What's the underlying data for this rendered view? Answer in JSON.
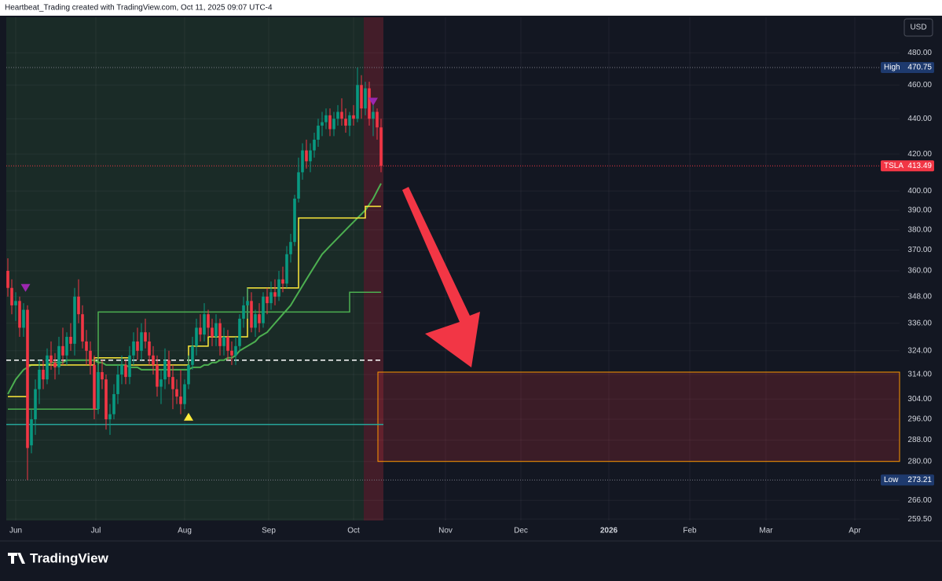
{
  "header": {
    "text": "Heartbeat_Trading created with TradingView.com, Oct 11, 2025 09:07 UTC-4",
    "currency": "USD"
  },
  "footer": {
    "logo": "TradingView"
  },
  "chart_data": {
    "type": "candlestick",
    "log_scale": true,
    "ylim": [
      259,
      503
    ],
    "xlim": [
      -0.4,
      227
    ],
    "up_color": "#089981",
    "down_color": "#f23645",
    "grid": true,
    "yticks": [
      {
        "value": 480,
        "label": "480.00"
      },
      {
        "value": 460,
        "label": "460.00"
      },
      {
        "value": 440,
        "label": "440.00"
      },
      {
        "value": 420,
        "label": "420.00"
      },
      {
        "value": 400,
        "label": "400.00"
      },
      {
        "value": 390,
        "label": "390.00"
      },
      {
        "value": 380,
        "label": "380.00"
      },
      {
        "value": 370,
        "label": "370.00"
      },
      {
        "value": 360,
        "label": "360.00"
      },
      {
        "value": 348,
        "label": "348.00"
      },
      {
        "value": 336,
        "label": "336.00"
      },
      {
        "value": 324,
        "label": "324.00"
      },
      {
        "value": 314,
        "label": "314.00"
      },
      {
        "value": 304,
        "label": "304.00"
      },
      {
        "value": 296,
        "label": "296.00"
      },
      {
        "value": 288,
        "label": "288.00"
      },
      {
        "value": 280,
        "label": "280.00"
      },
      {
        "value": 266,
        "label": "266.00"
      },
      {
        "value": 259.5,
        "label": "259.50"
      }
    ],
    "xticks": [
      {
        "value": 2,
        "label": "Jun"
      },
      {
        "value": 22.4,
        "label": "Jul"
      },
      {
        "value": 45,
        "label": "Aug"
      },
      {
        "value": 66.4,
        "label": "Sep"
      },
      {
        "value": 88,
        "label": "Oct"
      },
      {
        "value": 111.4,
        "label": "Nov"
      },
      {
        "value": 130.6,
        "label": "Dec"
      },
      {
        "value": 153,
        "label": "2026"
      },
      {
        "value": 173.6,
        "label": "Feb"
      },
      {
        "value": 193,
        "label": "Mar"
      },
      {
        "value": 215.6,
        "label": "Apr"
      }
    ],
    "ohlc": [
      [
        360,
        366,
        348,
        352
      ],
      [
        352,
        356,
        340,
        344
      ],
      [
        344,
        350,
        337,
        346
      ],
      [
        346,
        348,
        330,
        334
      ],
      [
        334,
        345,
        330,
        342
      ],
      [
        342,
        344,
        273.21,
        285
      ],
      [
        286,
        300,
        283,
        296
      ],
      [
        296,
        312,
        290,
        308
      ],
      [
        308,
        320,
        302,
        316
      ],
      [
        316,
        320,
        308,
        312
      ],
      [
        312,
        325,
        310,
        322
      ],
      [
        322,
        328,
        316,
        319
      ],
      [
        319,
        323,
        312,
        317
      ],
      [
        317,
        330,
        314,
        326
      ],
      [
        326,
        334,
        318,
        322
      ],
      [
        322,
        332,
        318,
        330
      ],
      [
        330,
        336,
        324,
        327
      ],
      [
        327,
        352,
        322,
        348
      ],
      [
        348,
        356,
        336,
        340
      ],
      [
        340,
        344,
        325,
        328
      ],
      [
        328,
        333,
        318,
        324
      ],
      [
        324,
        328,
        314,
        318
      ],
      [
        318,
        322,
        296,
        300
      ],
      [
        300,
        318,
        298,
        315
      ],
      [
        315,
        320,
        308,
        312
      ],
      [
        312,
        314,
        292,
        296
      ],
      [
        296,
        302,
        290,
        298
      ],
      [
        298,
        310,
        296,
        306
      ],
      [
        306,
        318,
        302,
        314
      ],
      [
        314,
        322,
        310,
        318
      ],
      [
        318,
        320,
        310,
        313
      ],
      [
        313,
        326,
        310,
        322
      ],
      [
        322,
        332,
        318,
        328
      ],
      [
        328,
        334,
        320,
        324
      ],
      [
        324,
        336,
        320,
        332
      ],
      [
        332,
        338,
        325,
        328
      ],
      [
        328,
        332,
        318,
        322
      ],
      [
        322,
        326,
        314,
        318
      ],
      [
        318,
        322,
        305,
        309
      ],
      [
        309,
        316,
        302,
        312
      ],
      [
        312,
        325,
        308,
        320
      ],
      [
        320,
        324,
        310,
        313
      ],
      [
        313,
        318,
        300,
        308
      ],
      [
        308,
        312,
        302,
        305
      ],
      [
        305,
        316,
        298,
        302
      ],
      [
        302,
        312,
        300,
        310
      ],
      [
        310,
        322,
        308,
        318
      ],
      [
        318,
        330,
        316,
        326
      ],
      [
        326,
        338,
        322,
        334
      ],
      [
        334,
        340,
        328,
        331
      ],
      [
        331,
        345,
        328,
        340
      ],
      [
        340,
        342,
        330,
        334
      ],
      [
        334,
        338,
        326,
        330
      ],
      [
        330,
        340,
        326,
        336
      ],
      [
        336,
        338,
        322,
        326
      ],
      [
        326,
        334,
        322,
        330
      ],
      [
        330,
        333,
        320,
        324
      ],
      [
        324,
        328,
        318,
        322
      ],
      [
        322,
        330,
        318,
        326
      ],
      [
        326,
        340,
        324,
        338
      ],
      [
        338,
        348,
        334,
        344
      ],
      [
        344,
        352,
        338,
        346
      ],
      [
        346,
        350,
        332,
        334
      ],
      [
        334,
        342,
        330,
        340
      ],
      [
        340,
        345,
        332,
        336
      ],
      [
        336,
        350,
        334,
        348
      ],
      [
        348,
        352,
        340,
        345
      ],
      [
        345,
        355,
        342,
        350
      ],
      [
        350,
        356,
        344,
        348
      ],
      [
        348,
        360,
        346,
        356
      ],
      [
        356,
        362,
        350,
        354
      ],
      [
        354,
        372,
        352,
        368
      ],
      [
        368,
        378,
        364,
        374
      ],
      [
        374,
        398,
        372,
        396
      ],
      [
        396,
        418,
        394,
        410
      ],
      [
        410,
        426,
        406,
        422
      ],
      [
        422,
        428,
        412,
        416
      ],
      [
        416,
        426,
        410,
        422
      ],
      [
        422,
        432,
        418,
        428
      ],
      [
        428,
        440,
        424,
        436
      ],
      [
        436,
        444,
        430,
        438
      ],
      [
        438,
        446,
        434,
        442
      ],
      [
        442,
        446,
        430,
        434
      ],
      [
        434,
        444,
        430,
        440
      ],
      [
        440,
        448,
        436,
        444
      ],
      [
        444,
        452,
        436,
        440
      ],
      [
        440,
        446,
        432,
        436
      ],
      [
        436,
        444,
        430,
        442
      ],
      [
        442,
        448,
        436,
        440
      ],
      [
        440,
        470.75,
        438,
        460
      ],
      [
        460,
        466,
        440,
        446
      ],
      [
        446,
        462,
        442,
        458
      ],
      [
        458,
        462,
        436,
        440
      ],
      [
        440,
        448,
        430,
        444
      ],
      [
        444,
        446,
        428,
        435
      ],
      [
        435,
        440,
        410,
        413.49
      ]
    ],
    "series": [
      {
        "color": "#4caf50",
        "width": 2,
        "values": [
          306,
          309,
          312,
          314,
          316,
          317,
          318,
          318,
          318,
          318,
          318,
          319,
          319,
          319,
          319,
          320,
          320,
          320,
          320,
          320,
          320,
          320,
          320,
          319,
          319,
          318,
          318,
          318,
          318,
          318,
          318,
          317,
          317,
          317,
          316,
          316,
          316,
          316,
          316,
          316,
          316,
          316,
          316,
          316,
          316,
          316,
          316,
          317,
          317,
          317,
          318,
          318,
          319,
          319,
          320,
          320,
          321,
          321,
          322,
          324,
          325,
          326,
          327,
          328,
          330,
          331,
          332,
          334,
          336,
          338,
          340,
          342,
          344,
          347,
          350,
          353,
          356,
          359,
          362,
          365,
          368,
          370,
          372,
          374,
          376,
          378,
          380,
          382,
          384,
          386,
          388,
          390,
          393,
          396,
          400,
          404
        ]
      },
      {
        "color": "#ffeb3b",
        "width": 1.5,
        "step": true,
        "values": [
          305,
          305,
          305,
          305,
          305,
          318,
          318,
          318,
          318,
          318,
          318,
          318,
          318,
          318,
          318,
          318,
          318,
          318,
          318,
          318,
          318,
          318,
          321,
          321,
          321,
          321,
          321,
          321,
          321,
          321,
          321,
          318,
          318,
          318,
          318,
          318,
          318,
          318,
          318,
          318,
          318,
          318,
          318,
          318,
          318,
          318,
          326,
          326,
          326,
          326,
          326,
          330,
          330,
          330,
          330,
          330,
          330,
          330,
          330,
          330,
          330,
          352,
          352,
          352,
          352,
          352,
          352,
          352,
          352,
          352,
          352,
          352,
          352,
          352,
          386,
          386,
          386,
          386,
          386,
          386,
          386,
          386,
          386,
          386,
          386,
          386,
          386,
          386,
          386,
          386,
          386,
          392,
          392,
          392,
          392,
          392
        ]
      },
      {
        "color": "#4caf50",
        "width": 1.5,
        "step": true,
        "values": [
          300,
          300,
          300,
          300,
          300,
          300,
          300,
          300,
          300,
          300,
          300,
          300,
          300,
          300,
          300,
          300,
          300,
          300,
          300,
          300,
          300,
          300,
          300,
          341,
          341,
          341,
          341,
          341,
          341,
          341,
          341,
          341,
          341,
          341,
          341,
          341,
          341,
          341,
          341,
          341,
          341,
          341,
          341,
          341,
          341,
          341,
          341,
          341,
          341,
          341,
          341,
          341,
          341,
          341,
          341,
          341,
          341,
          341,
          341,
          341,
          341,
          341,
          341,
          341,
          341,
          341,
          341,
          341,
          341,
          341,
          341,
          341,
          341,
          341,
          341,
          341,
          341,
          341,
          341,
          341,
          341,
          341,
          341,
          341,
          341,
          341,
          341,
          350,
          350,
          350,
          350,
          350,
          350,
          350,
          350,
          350
        ]
      }
    ],
    "levels": [
      {
        "value": 320,
        "color": "#ffffff",
        "dashed": true
      },
      {
        "value": 294,
        "color": "#26a69a",
        "dashed": false
      }
    ],
    "zones": [
      {
        "x": [
          -0.4,
          90.6
        ],
        "color": "rgba(76,175,80,0.13)"
      },
      {
        "x": [
          90.6,
          95.6
        ],
        "color": "rgba(242,54,69,0.22)"
      }
    ],
    "box": {
      "x": [
        94.2,
        227
      ],
      "y": [
        280,
        315
      ],
      "stroke": "#ff9800",
      "fill": "rgba(242,54,69,0.18)"
    },
    "signals": [
      {
        "x": 4.5,
        "y": 352,
        "dir": "down",
        "color": "#9c27b0"
      },
      {
        "x": 93,
        "y": 450,
        "dir": "down",
        "color": "#9c27b0"
      },
      {
        "x": 46,
        "y": 297,
        "dir": "up",
        "color": "#ffeb3b"
      }
    ],
    "price_labels": [
      {
        "name": "High",
        "value": 470.75,
        "color": "#1e3a6e",
        "line": "#787b86"
      },
      {
        "name": "TSLA",
        "value": 413.49,
        "color": "#f23645",
        "line": "#f23645"
      },
      {
        "name": "Low",
        "value": 273.21,
        "color": "#1e3a6e",
        "line": "#787b86"
      }
    ]
  }
}
